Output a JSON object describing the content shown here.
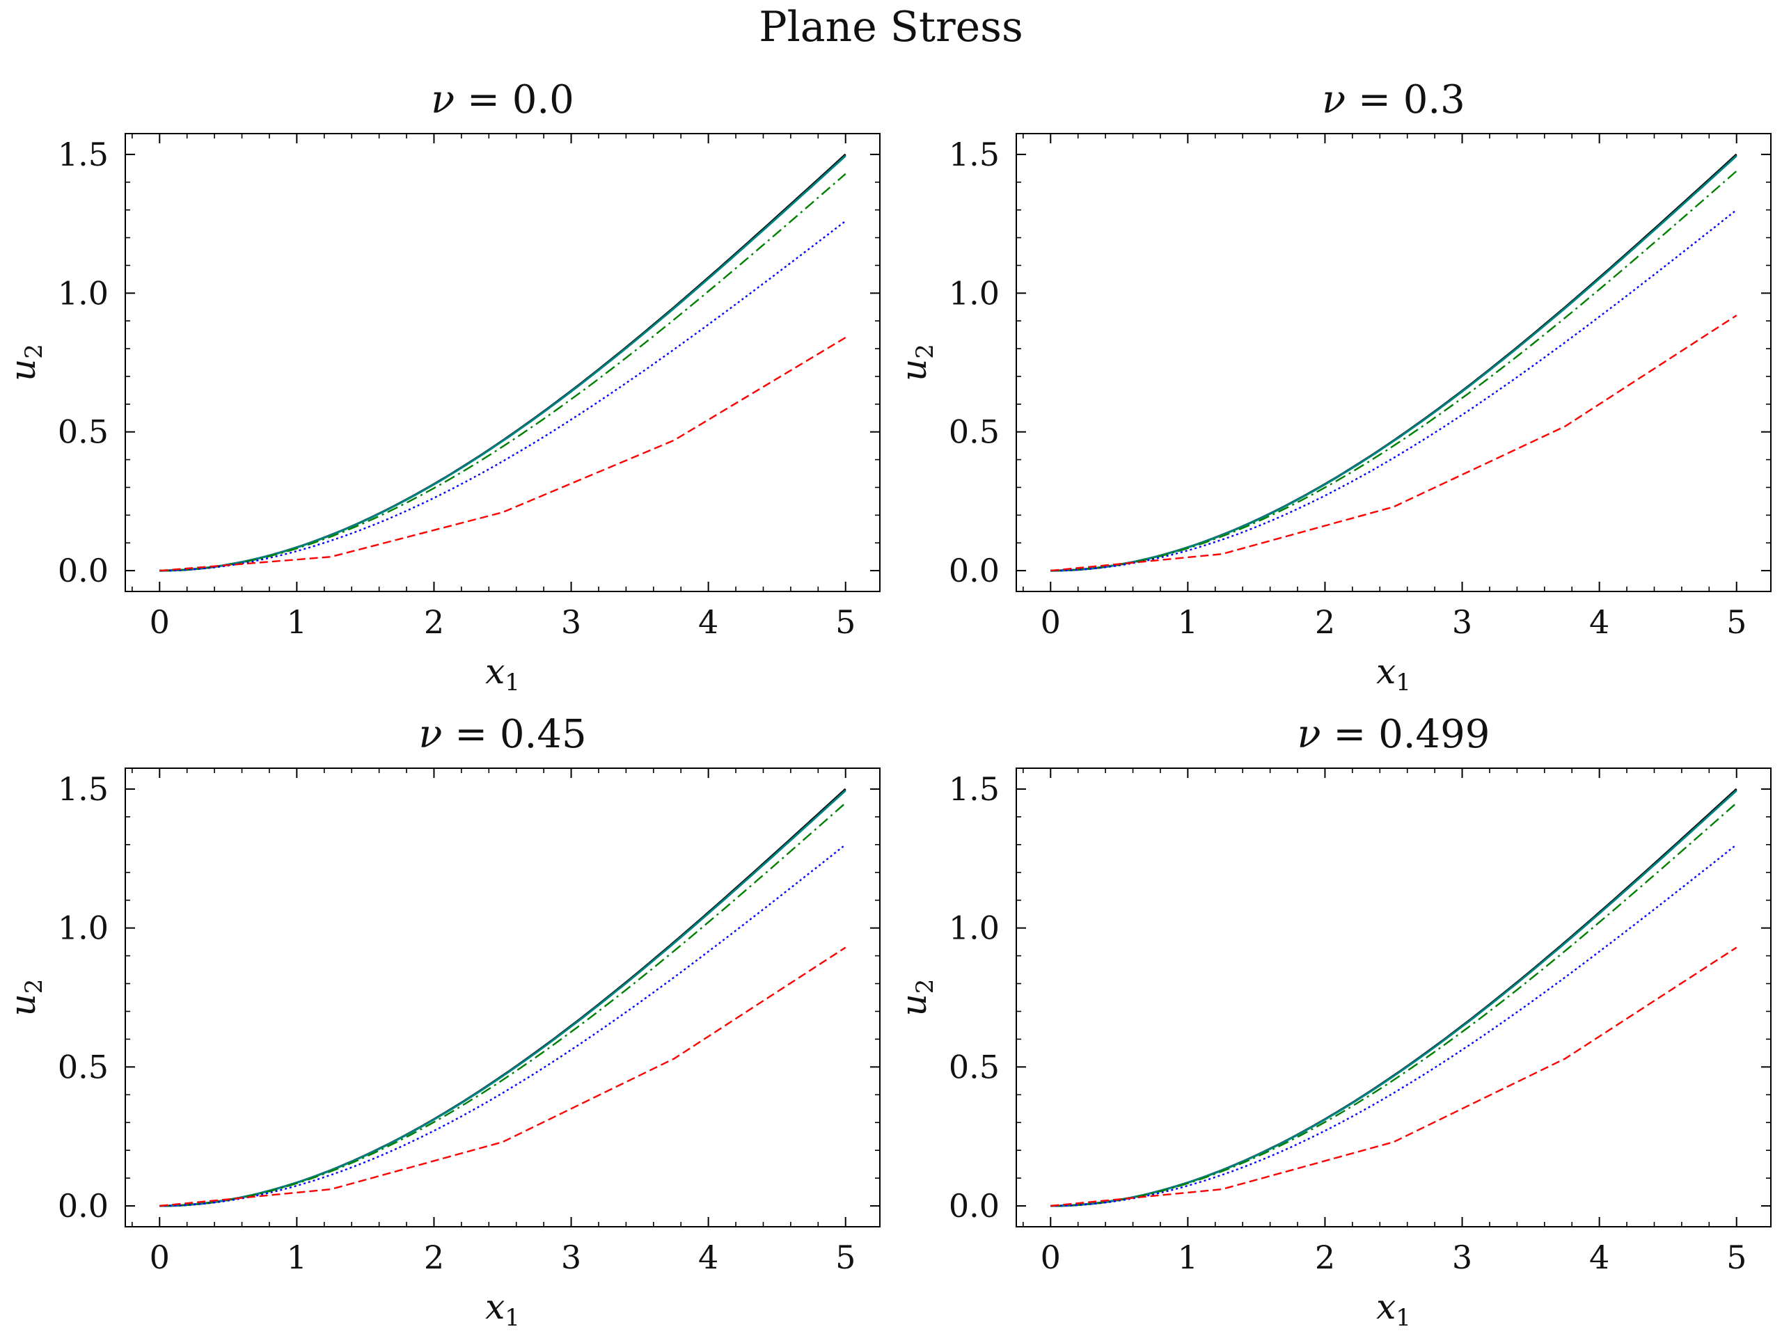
{
  "figure": {
    "suptitle": "Plane Stress"
  },
  "colors": {
    "solid": "#000000",
    "dashed": "#ff0000",
    "dotted": "#0000ff",
    "dashdot": "#008000",
    "teal": "#008080"
  },
  "chart_data": [
    {
      "type": "line",
      "title_symbol": "ν",
      "title_value": "0.0",
      "xlabel_main": "x",
      "xlabel_sub": "1",
      "ylabel_main": "u",
      "ylabel_sub": "2",
      "xlim": [
        -0.25,
        5.25
      ],
      "ylim": [
        -0.075,
        1.575
      ],
      "xticks": [
        "0",
        "1",
        "2",
        "3",
        "4",
        "5"
      ],
      "yticks": [
        "0.0",
        "0.5",
        "1.0",
        "1.5"
      ],
      "grid": false,
      "series": [
        {
          "style": "solid",
          "color": "#000000",
          "fn": "exact",
          "end": 1.5
        },
        {
          "style": "solid",
          "color": "#008080",
          "fn": "exact",
          "end": 1.495
        },
        {
          "style": "dashdot",
          "color": "#008000",
          "fn": "exact",
          "end": 1.43
        },
        {
          "style": "dotted",
          "color": "#0000ff",
          "fn": "exact",
          "end": 1.26
        },
        {
          "style": "dashed",
          "color": "#ff0000",
          "x": [
            0,
            1.25,
            2.5,
            3.75,
            5
          ],
          "y": [
            0,
            0.05,
            0.21,
            0.47,
            0.84
          ]
        }
      ]
    },
    {
      "type": "line",
      "title_symbol": "ν",
      "title_value": "0.3",
      "xlabel_main": "x",
      "xlabel_sub": "1",
      "ylabel_main": "u",
      "ylabel_sub": "2",
      "xlim": [
        -0.25,
        5.25
      ],
      "ylim": [
        -0.075,
        1.575
      ],
      "xticks": [
        "0",
        "1",
        "2",
        "3",
        "4",
        "5"
      ],
      "yticks": [
        "0.0",
        "0.5",
        "1.0",
        "1.5"
      ],
      "grid": false,
      "series": [
        {
          "style": "solid",
          "color": "#000000",
          "fn": "exact",
          "end": 1.5
        },
        {
          "style": "solid",
          "color": "#008080",
          "fn": "exact",
          "end": 1.495
        },
        {
          "style": "dashdot",
          "color": "#008000",
          "fn": "exact",
          "end": 1.44
        },
        {
          "style": "dotted",
          "color": "#0000ff",
          "fn": "exact",
          "end": 1.3
        },
        {
          "style": "dashed",
          "color": "#ff0000",
          "x": [
            0,
            1.25,
            2.5,
            3.75,
            5
          ],
          "y": [
            0,
            0.06,
            0.23,
            0.52,
            0.92
          ]
        }
      ]
    },
    {
      "type": "line",
      "title_symbol": "ν",
      "title_value": "0.45",
      "xlabel_main": "x",
      "xlabel_sub": "1",
      "ylabel_main": "u",
      "ylabel_sub": "2",
      "xlim": [
        -0.25,
        5.25
      ],
      "ylim": [
        -0.075,
        1.575
      ],
      "xticks": [
        "0",
        "1",
        "2",
        "3",
        "4",
        "5"
      ],
      "yticks": [
        "0.0",
        "0.5",
        "1.0",
        "1.5"
      ],
      "grid": false,
      "series": [
        {
          "style": "solid",
          "color": "#000000",
          "fn": "exact",
          "end": 1.5
        },
        {
          "style": "solid",
          "color": "#008080",
          "fn": "exact",
          "end": 1.495
        },
        {
          "style": "dashdot",
          "color": "#008000",
          "fn": "exact",
          "end": 1.45
        },
        {
          "style": "dotted",
          "color": "#0000ff",
          "fn": "exact",
          "end": 1.3
        },
        {
          "style": "dashed",
          "color": "#ff0000",
          "x": [
            0,
            1.25,
            2.5,
            3.75,
            5
          ],
          "y": [
            0,
            0.06,
            0.23,
            0.53,
            0.93
          ]
        }
      ]
    },
    {
      "type": "line",
      "title_symbol": "ν",
      "title_value": "0.499",
      "xlabel_main": "x",
      "xlabel_sub": "1",
      "ylabel_main": "u",
      "ylabel_sub": "2",
      "xlim": [
        -0.25,
        5.25
      ],
      "ylim": [
        -0.075,
        1.575
      ],
      "xticks": [
        "0",
        "1",
        "2",
        "3",
        "4",
        "5"
      ],
      "yticks": [
        "0.0",
        "0.5",
        "1.0",
        "1.5"
      ],
      "grid": false,
      "series": [
        {
          "style": "solid",
          "color": "#000000",
          "fn": "exact",
          "end": 1.5
        },
        {
          "style": "solid",
          "color": "#008080",
          "fn": "exact",
          "end": 1.495
        },
        {
          "style": "dashdot",
          "color": "#008000",
          "fn": "exact",
          "end": 1.45
        },
        {
          "style": "dotted",
          "color": "#0000ff",
          "fn": "exact",
          "end": 1.3
        },
        {
          "style": "dashed",
          "color": "#ff0000",
          "x": [
            0,
            1.25,
            2.5,
            3.75,
            5
          ],
          "y": [
            0,
            0.06,
            0.23,
            0.53,
            0.93
          ]
        }
      ]
    }
  ]
}
